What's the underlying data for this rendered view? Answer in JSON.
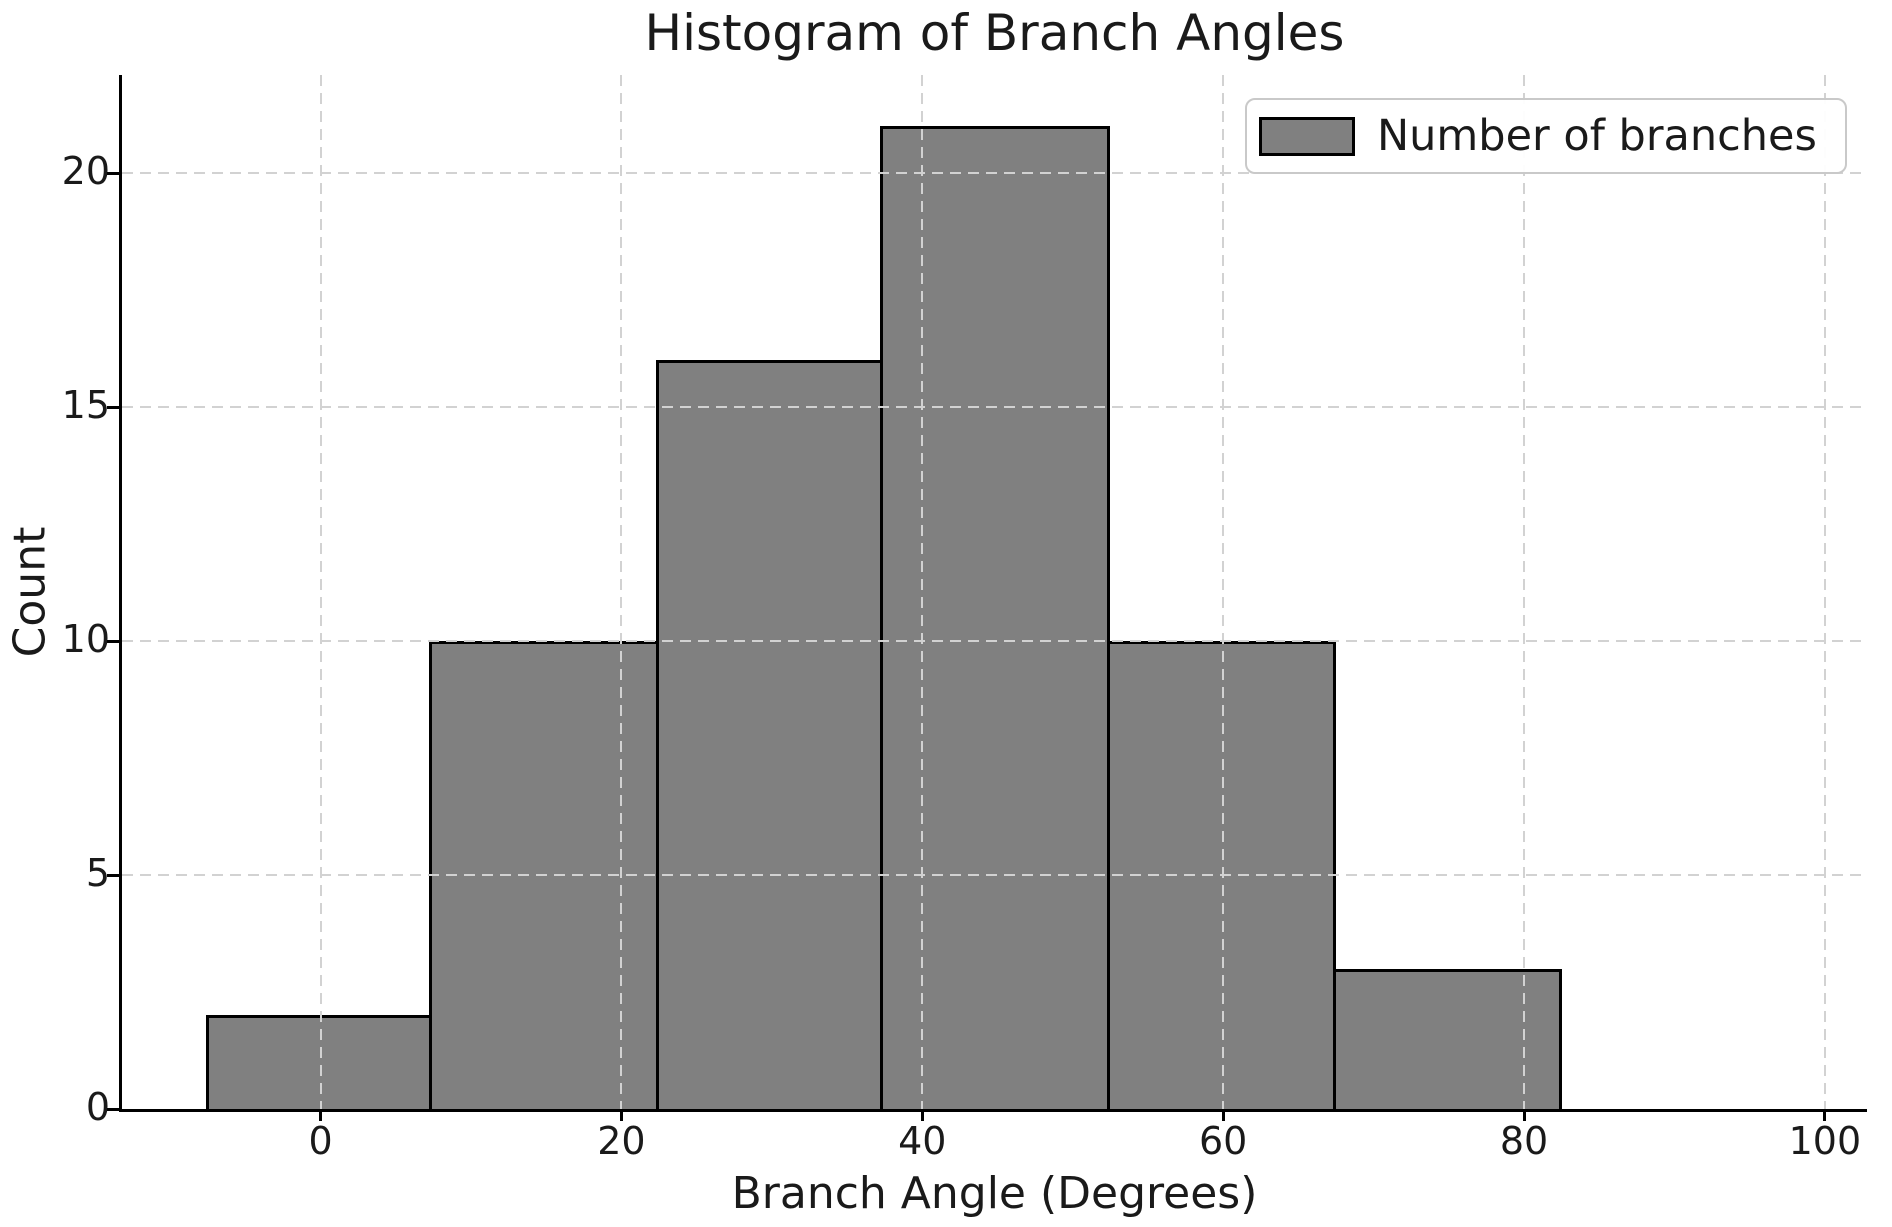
{
  "chart_data": {
    "type": "bar",
    "subtype": "histogram",
    "title": "Histogram of Branch Angles",
    "xlabel": "Branch Angle (Degrees)",
    "ylabel": "Count",
    "legend": [
      "Number of branches"
    ],
    "legend_position": "upper right",
    "bin_edges_degrees": [
      -7.6,
      7.4,
      22.5,
      37.4,
      52.5,
      67.5,
      82.5
    ],
    "counts": [
      2,
      10,
      16,
      21,
      10,
      3
    ],
    "xticks": [
      0,
      20,
      40,
      60,
      80,
      100
    ],
    "yticks": [
      0,
      5,
      10,
      15,
      20
    ],
    "xlim": [
      -13.2,
      102.8
    ],
    "ylim": [
      0,
      22.1
    ],
    "grid": "dashed, drawn above bars",
    "colors": {
      "bar_fill": "#808080",
      "bar_edge": "#000000",
      "grid": "#d2d2d2",
      "axis": "#000000",
      "text": "#1a1a1a",
      "background": "#ffffff"
    }
  }
}
